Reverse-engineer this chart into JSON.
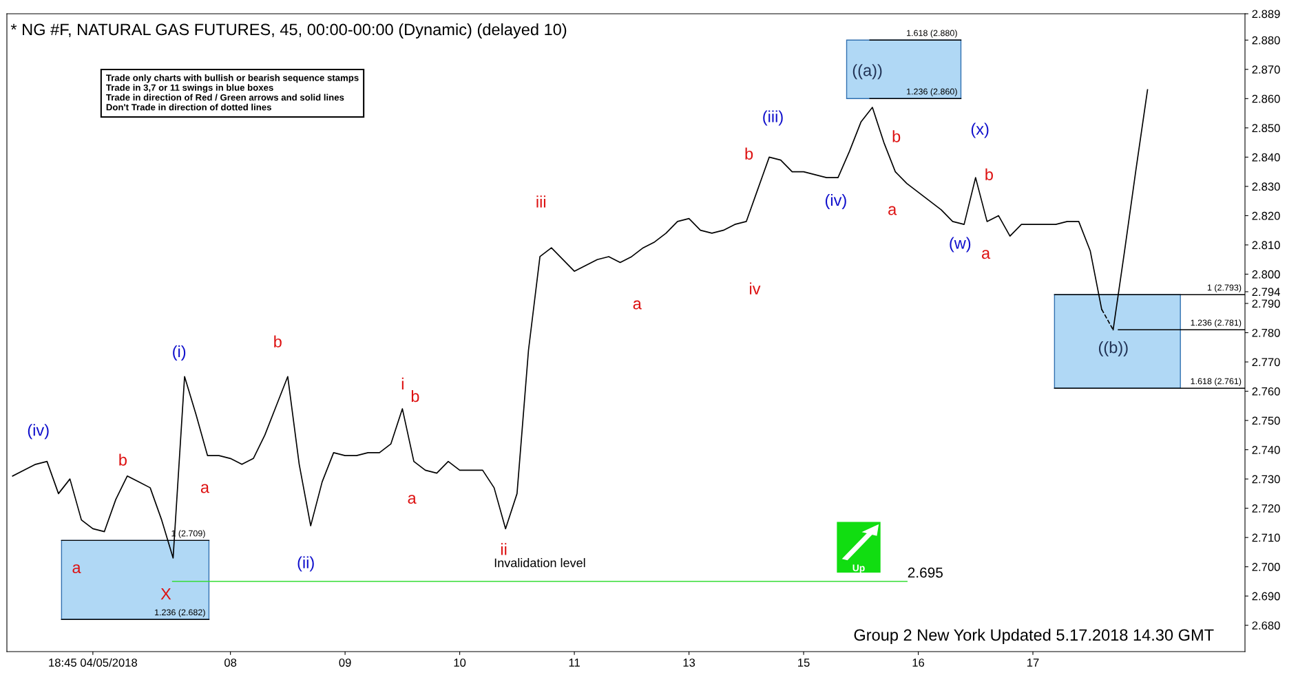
{
  "chart_data": {
    "type": "line",
    "title": "* NG #F, NATURAL GAS FUTURES, 45, 00:00-00:00 (Dynamic) (delayed 10)",
    "categories": [
      null,
      null,
      null,
      null,
      null,
      null,
      null,
      "18:45 04/05/2018",
      null,
      null,
      null,
      null,
      null,
      null,
      null,
      null,
      null,
      null,
      null,
      "08",
      null,
      null,
      null,
      null,
      null,
      null,
      null,
      null,
      null,
      "09",
      null,
      null,
      null,
      null,
      null,
      null,
      null,
      null,
      null,
      "10",
      null,
      null,
      null,
      null,
      null,
      null,
      null,
      null,
      null,
      "11",
      null,
      null,
      null,
      null,
      null,
      null,
      null,
      null,
      null,
      "13",
      null,
      null,
      null,
      null,
      null,
      null,
      null,
      null,
      null,
      "15",
      null,
      null,
      null,
      null,
      null,
      null,
      null,
      null,
      null,
      "16",
      null,
      null,
      null,
      null,
      null,
      null,
      null,
      null,
      null,
      "17",
      null,
      null,
      null,
      null,
      null,
      null,
      null,
      null,
      null,
      null,
      null,
      null,
      null,
      null,
      null,
      null,
      null,
      null
    ],
    "ylim": [
      2.671,
      2.889
    ],
    "yticks": [
      {
        "value": 2.68,
        "label": "2.680"
      },
      {
        "value": 2.69,
        "label": "2.690"
      },
      {
        "value": 2.7,
        "label": "2.700"
      },
      {
        "value": 2.71,
        "label": "2.710"
      },
      {
        "value": 2.72,
        "label": "2.720"
      },
      {
        "value": 2.73,
        "label": "2.730"
      },
      {
        "value": 2.74,
        "label": "2.740"
      },
      {
        "value": 2.75,
        "label": "2.750"
      },
      {
        "value": 2.76,
        "label": "2.760"
      },
      {
        "value": 2.77,
        "label": "2.770"
      },
      {
        "value": 2.78,
        "label": "2.780"
      },
      {
        "value": 2.79,
        "label": "2.790"
      },
      {
        "value": 2.794,
        "label": "2.794"
      },
      {
        "value": 2.8,
        "label": "2.800"
      },
      {
        "value": 2.81,
        "label": "2.810"
      },
      {
        "value": 2.82,
        "label": "2.820"
      },
      {
        "value": 2.83,
        "label": "2.830"
      },
      {
        "value": 2.84,
        "label": "2.840"
      },
      {
        "value": 2.85,
        "label": "2.850"
      },
      {
        "value": 2.86,
        "label": "2.860"
      },
      {
        "value": 2.87,
        "label": "2.870"
      },
      {
        "value": 2.88,
        "label": "2.880"
      },
      {
        "value": 2.889,
        "label": "2.889"
      }
    ],
    "grid": false,
    "legend": false,
    "marker": "none",
    "series": [
      {
        "color": "#000000",
        "line_style": "solid",
        "values": [
          2.731,
          2.733,
          2.735,
          2.736,
          2.725,
          2.73,
          2.716,
          2.713,
          2.712,
          2.723,
          2.731,
          2.729,
          2.727,
          2.716,
          2.703,
          2.765,
          2.752,
          2.738,
          2.738,
          2.737,
          2.735,
          2.737,
          2.745,
          2.755,
          2.765,
          2.735,
          2.714,
          2.729,
          2.739,
          2.738,
          2.738,
          2.739,
          2.739,
          2.742,
          2.754,
          2.736,
          2.733,
          2.732,
          2.736,
          2.733,
          2.733,
          2.733,
          2.727,
          2.713,
          2.725,
          2.774,
          2.806,
          2.809,
          2.805,
          2.801,
          2.803,
          2.805,
          2.806,
          2.804,
          2.806,
          2.809,
          2.811,
          2.814,
          2.818,
          2.819,
          2.815,
          2.814,
          2.815,
          2.817,
          2.818,
          2.829,
          2.84,
          2.839,
          2.835,
          2.835,
          2.834,
          2.833,
          2.833,
          2.842,
          2.852,
          2.857,
          2.845,
          2.835,
          2.831,
          2.828,
          2.825,
          2.822,
          2.818,
          2.817,
          2.833,
          2.818,
          2.82,
          2.813,
          2.817,
          2.817,
          2.817,
          2.817,
          2.818,
          2.818,
          2.808,
          2.788,
          null,
          null,
          null,
          null,
          null,
          null,
          null,
          null,
          null,
          null,
          null,
          null
        ]
      },
      {
        "color": "#000000",
        "line_style": "dashed",
        "values": [
          null,
          null,
          null,
          null,
          null,
          null,
          null,
          null,
          null,
          null,
          null,
          null,
          null,
          null,
          null,
          null,
          null,
          null,
          null,
          null,
          null,
          null,
          null,
          null,
          null,
          null,
          null,
          null,
          null,
          null,
          null,
          null,
          null,
          null,
          null,
          null,
          null,
          null,
          null,
          null,
          null,
          null,
          null,
          null,
          null,
          null,
          null,
          null,
          null,
          null,
          null,
          null,
          null,
          null,
          null,
          null,
          null,
          null,
          null,
          null,
          null,
          null,
          null,
          null,
          null,
          null,
          null,
          null,
          null,
          null,
          null,
          null,
          null,
          null,
          null,
          null,
          null,
          null,
          null,
          null,
          null,
          null,
          null,
          null,
          null,
          null,
          null,
          null,
          null,
          null,
          null,
          null,
          null,
          null,
          null,
          2.788,
          2.781,
          null,
          null,
          null,
          null,
          null,
          null,
          null,
          null,
          null,
          null,
          null
        ]
      },
      {
        "color": "#000000",
        "line_style": "solid",
        "values": [
          null,
          null,
          null,
          null,
          null,
          null,
          null,
          null,
          null,
          null,
          null,
          null,
          null,
          null,
          null,
          null,
          null,
          null,
          null,
          null,
          null,
          null,
          null,
          null,
          null,
          null,
          null,
          null,
          null,
          null,
          null,
          null,
          null,
          null,
          null,
          null,
          null,
          null,
          null,
          null,
          null,
          null,
          null,
          null,
          null,
          null,
          null,
          null,
          null,
          null,
          null,
          null,
          null,
          null,
          null,
          null,
          null,
          null,
          null,
          null,
          null,
          null,
          null,
          null,
          null,
          null,
          null,
          null,
          null,
          null,
          null,
          null,
          null,
          null,
          null,
          null,
          null,
          null,
          null,
          null,
          null,
          null,
          null,
          null,
          null,
          null,
          null,
          null,
          null,
          null,
          null,
          null,
          null,
          null,
          null,
          null,
          2.781,
          2.808,
          2.836,
          2.863,
          null,
          null,
          null,
          null,
          null,
          null,
          null,
          null
        ]
      }
    ],
    "bands": [
      {
        "axis": "y",
        "from": 2.682,
        "to": 2.709,
        "color": "#b0d8f5"
      },
      {
        "axis": "y",
        "from": 2.86,
        "to": 2.88,
        "color": "#b0d8f5"
      },
      {
        "axis": "y",
        "from": 2.761,
        "to": 2.793,
        "color": "#b0d8f5"
      }
    ],
    "ref_lines": [
      {
        "axis": "y",
        "value": 2.88,
        "label": "1.618 (2.880)",
        "color": "#000000"
      },
      {
        "axis": "y",
        "value": 2.86,
        "label": "1.236 (2.860)",
        "color": "#000000"
      },
      {
        "axis": "y",
        "value": 2.793,
        "label": "1 (2.793)",
        "color": "#000000"
      },
      {
        "axis": "y",
        "value": 2.781,
        "label": "1.236 (2.781)",
        "color": "#000000"
      },
      {
        "axis": "y",
        "value": 2.761,
        "label": "1.618 (2.761)",
        "color": "#000000"
      },
      {
        "axis": "y",
        "value": 2.709,
        "label": "1 (2.709)",
        "color": "#000000"
      },
      {
        "axis": "y",
        "value": 2.682,
        "label": "1.236 (2.682)",
        "color": "#000000"
      },
      {
        "axis": "y",
        "value": 2.695,
        "label": "Invalidation level",
        "color": "#33dd33"
      }
    ],
    "annotations": [
      "(iv)",
      "a",
      "b",
      "(i)",
      "X",
      "a",
      "b",
      "(ii)",
      "i",
      "b",
      "a",
      "ii",
      "iii",
      "a",
      "b",
      "iv",
      "(iii)",
      "(iv)",
      "((a))",
      "b",
      "a",
      "(w)",
      "(x)",
      "b",
      "a",
      "((b))",
      "2.695",
      "Trade only charts with bullish or bearish sequence stamps\nTrade in 3,7 or 11 swings in blue boxes\nTrade in direction of Red / Green arrows and solid lines\nDon't Trade in direction of dotted lines",
      "Up",
      "Group 2 New York Updated 5.17.2018 14.30 GMT"
    ]
  }
}
